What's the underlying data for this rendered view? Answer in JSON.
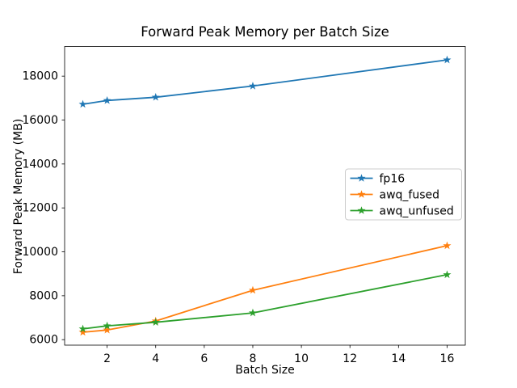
{
  "figure": {
    "background_color": "#ffffff",
    "axes_edge_color": "#000000"
  },
  "chart_data": {
    "type": "line",
    "title": "Forward Peak Memory per Batch Size",
    "xlabel": "Batch Size",
    "ylabel": "Forward Peak Memory (MB)",
    "x": [
      1,
      2,
      4,
      8,
      16
    ],
    "series": [
      {
        "name": "fp16",
        "color": "#1f77b4",
        "marker": "star",
        "values": [
          16720,
          16890,
          17040,
          17550,
          18740
        ]
      },
      {
        "name": "awq_fused",
        "color": "#ff7f0e",
        "marker": "star",
        "values": [
          6340,
          6440,
          6850,
          8250,
          10280
        ]
      },
      {
        "name": "awq_unfused",
        "color": "#2ca02c",
        "marker": "star",
        "values": [
          6490,
          6630,
          6790,
          7220,
          8960
        ]
      }
    ],
    "xticks": [
      2,
      4,
      6,
      8,
      10,
      12,
      14,
      16
    ],
    "yticks": [
      6000,
      8000,
      10000,
      12000,
      14000,
      16000,
      18000
    ],
    "xlim": [
      0.25,
      16.75
    ],
    "ylim": [
      5750,
      19350
    ],
    "grid": false,
    "legend": {
      "position": "center-right",
      "border_color": "#cccccc",
      "background_color": "#ffffff",
      "entries": [
        "fp16",
        "awq_fused",
        "awq_unfused"
      ]
    }
  }
}
